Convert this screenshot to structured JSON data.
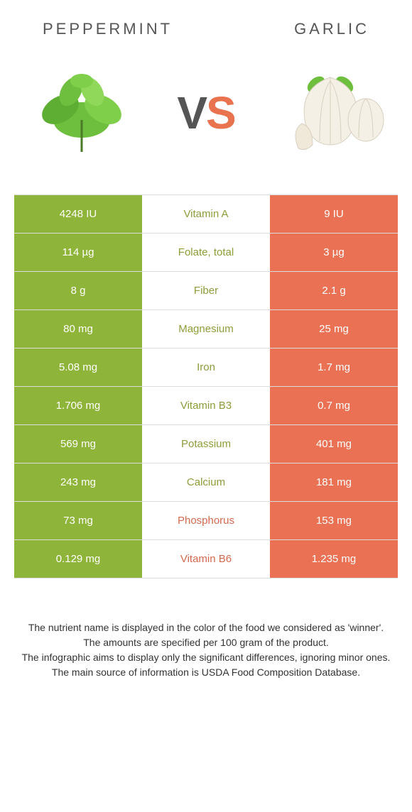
{
  "colors": {
    "left": "#8fb43a",
    "right": "#ea7153",
    "leftText": "#8a9e3a",
    "rightText": "#d46a4f"
  },
  "header": {
    "left": "Peppermint",
    "right": "Garlic"
  },
  "vs": {
    "v": "V",
    "s": "S"
  },
  "rows": [
    {
      "left": "4248 IU",
      "label": "Vitamin A",
      "right": "9 IU",
      "winner": "left"
    },
    {
      "left": "114 µg",
      "label": "Folate, total",
      "right": "3 µg",
      "winner": "left"
    },
    {
      "left": "8 g",
      "label": "Fiber",
      "right": "2.1 g",
      "winner": "left"
    },
    {
      "left": "80 mg",
      "label": "Magnesium",
      "right": "25 mg",
      "winner": "left"
    },
    {
      "left": "5.08 mg",
      "label": "Iron",
      "right": "1.7 mg",
      "winner": "left"
    },
    {
      "left": "1.706 mg",
      "label": "Vitamin B3",
      "right": "0.7 mg",
      "winner": "left"
    },
    {
      "left": "569 mg",
      "label": "Potassium",
      "right": "401 mg",
      "winner": "left"
    },
    {
      "left": "243 mg",
      "label": "Calcium",
      "right": "181 mg",
      "winner": "left"
    },
    {
      "left": "73 mg",
      "label": "Phosphorus",
      "right": "153 mg",
      "winner": "right"
    },
    {
      "left": "0.129 mg",
      "label": "Vitamin B6",
      "right": "1.235 mg",
      "winner": "right"
    }
  ],
  "footnotes": [
    "The nutrient name is displayed in the color of the food we considered as 'winner'.",
    "The amounts are specified per 100 gram of the product.",
    "The infographic aims to display only the significant differences, ignoring minor ones.",
    "The main source of information is USDA Food Composition Database."
  ]
}
